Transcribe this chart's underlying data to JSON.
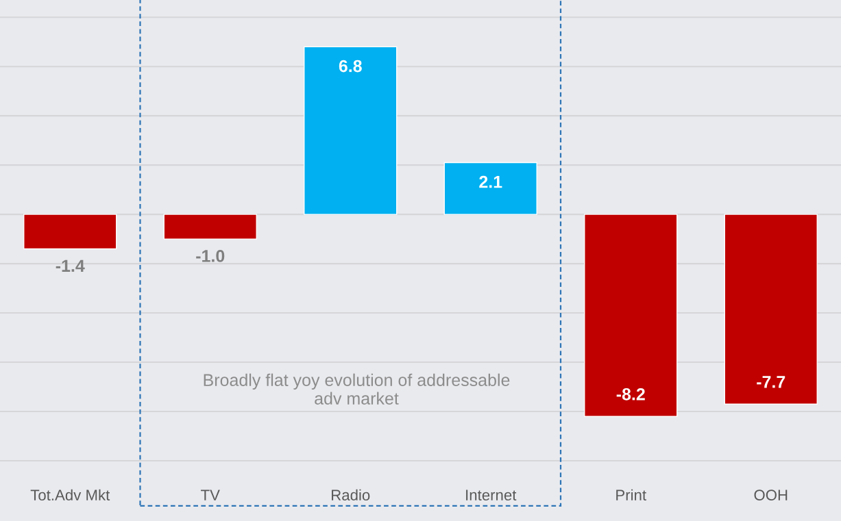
{
  "chart_data": {
    "type": "bar",
    "categories": [
      "Tot.Adv Mkt",
      "TV",
      "Radio",
      "Internet",
      "Print",
      "OOH"
    ],
    "values": [
      -1.4,
      -1.0,
      6.8,
      2.1,
      -8.2,
      -7.7
    ],
    "colors": [
      "#c00000",
      "#c00000",
      "#00b0f0",
      "#00b0f0",
      "#c00000",
      "#c00000"
    ],
    "ylim": [
      -10,
      8.7
    ],
    "yticks": [
      {
        "value": -10,
        "label": null
      },
      {
        "value": -8,
        "label": null
      },
      {
        "value": -6,
        "label": null
      },
      {
        "value": -4,
        "label": null
      },
      {
        "value": -2,
        "label": null
      },
      {
        "value": 0,
        "label": null
      },
      {
        "value": 2,
        "label": null
      },
      {
        "value": 4,
        "label": null
      },
      {
        "value": 6,
        "label": null
      },
      {
        "value": 8,
        "label": null
      }
    ],
    "value_labels": [
      "-1.4",
      "-1.0",
      "6.8",
      "2.1",
      "-8.2",
      "-7.7"
    ],
    "grid": "y",
    "tick_labels": "x",
    "annotations": [
      "Broadly flat yoy evolution of addressable adv market"
    ]
  }
}
